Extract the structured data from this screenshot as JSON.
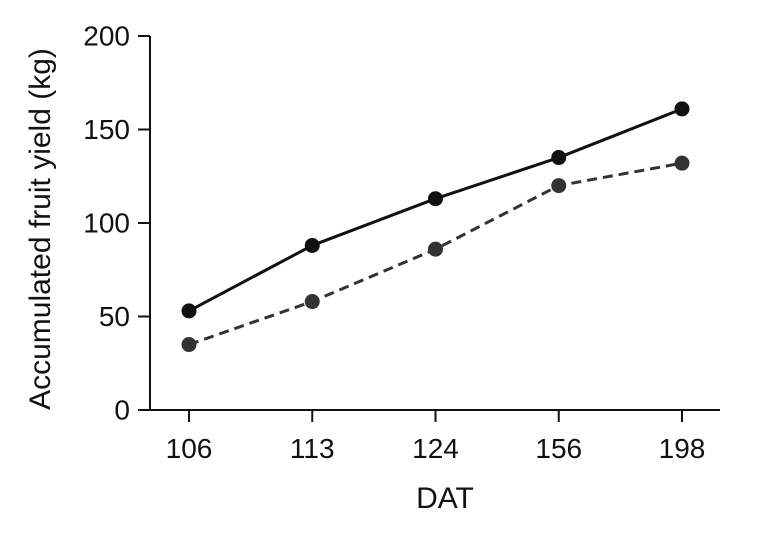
{
  "chart_data": {
    "type": "line",
    "title": "",
    "xlabel": "DAT",
    "ylabel": "Accumulated fruit yield (kg)",
    "categories": [
      "106",
      "113",
      "124",
      "156",
      "198"
    ],
    "ylim": [
      0,
      200
    ],
    "yticks": [
      0,
      50,
      100,
      150,
      200
    ],
    "grid": false,
    "legend": "none",
    "series": [
      {
        "line_style": "solid",
        "color": "#111111",
        "values": [
          53,
          88,
          113,
          135,
          161
        ]
      },
      {
        "line_style": "dashed",
        "color": "#333333",
        "values": [
          35,
          58,
          86,
          120,
          132
        ]
      }
    ]
  }
}
